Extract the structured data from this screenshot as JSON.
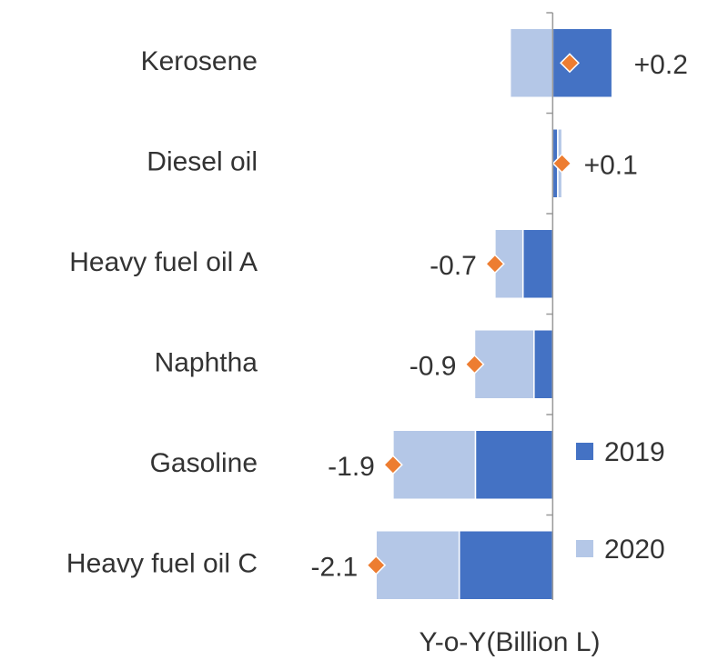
{
  "chart_data": {
    "type": "stacked-barh",
    "categories": [
      "Kerosene",
      "Diesel oil",
      "Heavy fuel oil A",
      "Naphtha",
      "Gasoline",
      "Heavy fuel oil C"
    ],
    "series": [
      {
        "name": "2019",
        "color": "#4472c4",
        "values": [
          0.7,
          0.06,
          -0.35,
          -0.22,
          -0.91,
          -1.1
        ]
      },
      {
        "name": "2020",
        "color": "#b4c7e7",
        "values": [
          -0.5,
          0.05,
          -0.33,
          -0.7,
          -0.97,
          -0.98
        ]
      }
    ],
    "totals": {
      "color": "#ed7d31",
      "values": [
        0.2,
        0.11,
        -0.68,
        -0.92,
        -1.88,
        -2.08
      ],
      "value_labels": [
        "+0.2",
        "+0.1",
        "-0.7",
        "-0.9",
        "-1.9",
        "-2.1"
      ]
    },
    "xlabel": "Y-o-Y(Billion L)",
    "xlim": [
      -2.2,
      0.8
    ],
    "legend": "right"
  }
}
